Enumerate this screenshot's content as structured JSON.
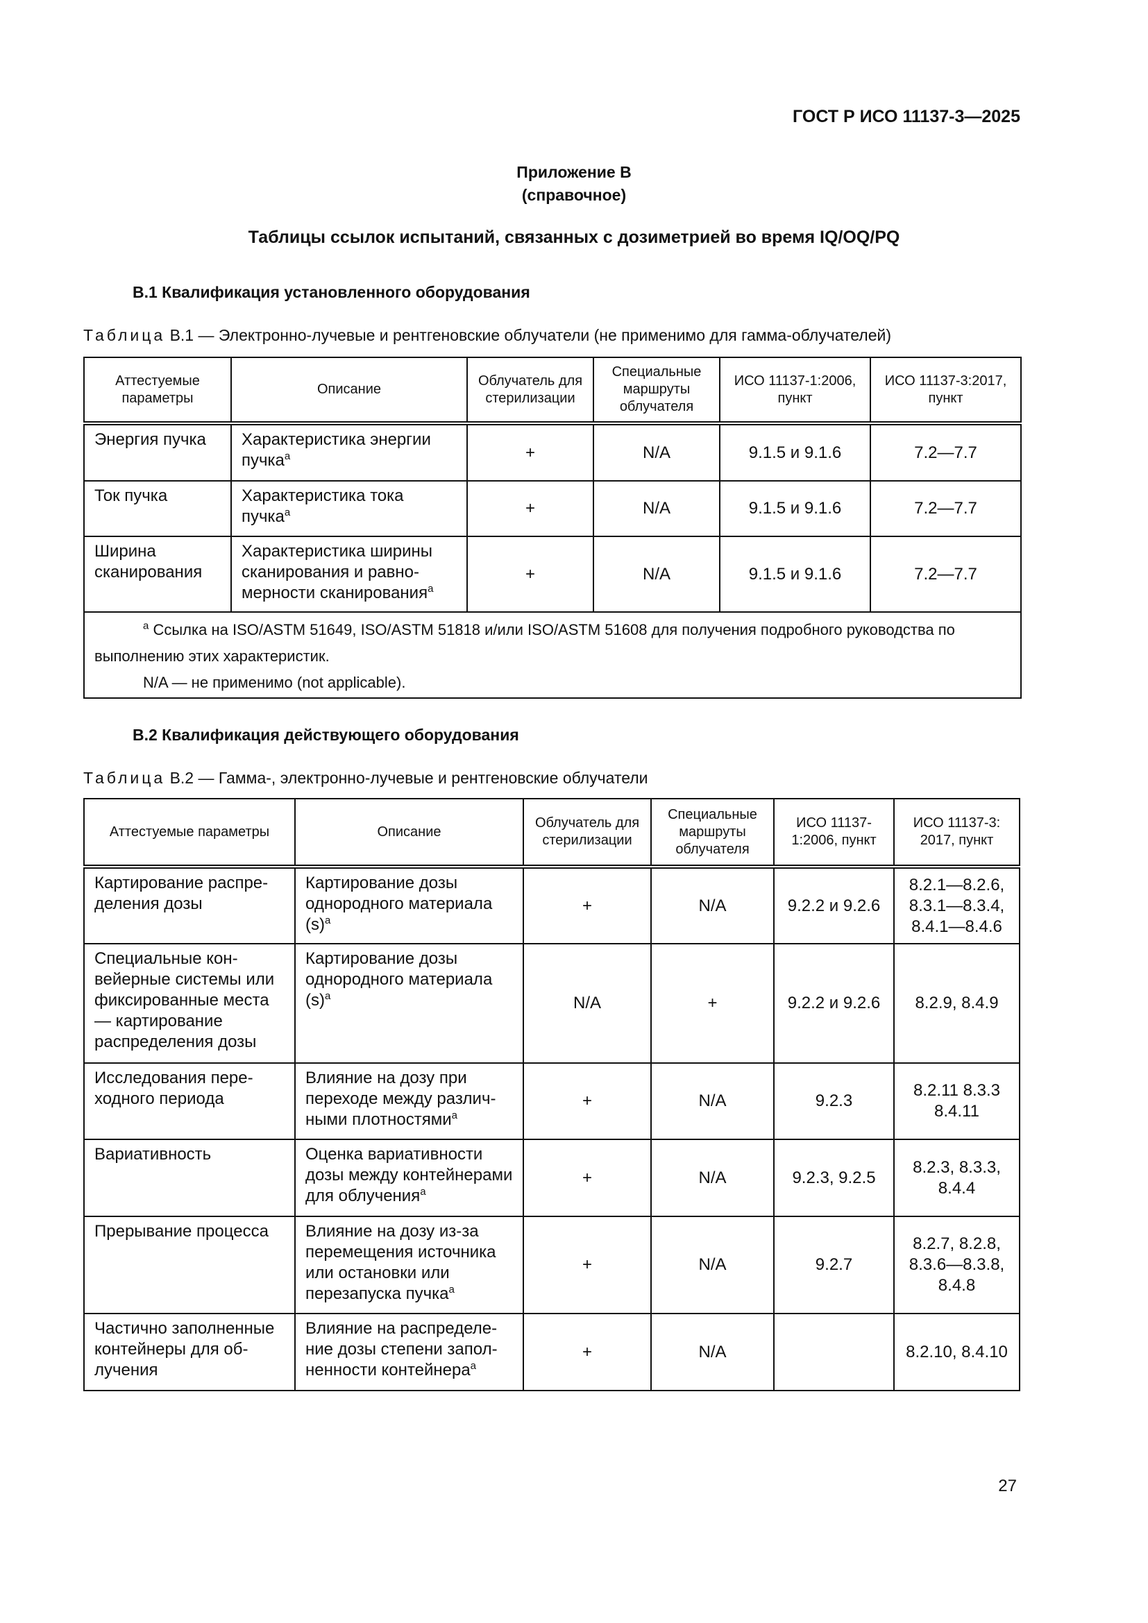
{
  "header": {
    "doc_code": "ГОСТ Р ИСО 11137-3—2025"
  },
  "annex": {
    "title": "Приложение В",
    "subtitle": "(справочное)",
    "heading": "Таблицы ссылок испытаний, связанных с дозиметрией во время IQ/OQ/PQ"
  },
  "section1": {
    "heading": "В.1 Квалификация установленного оборудования",
    "caption_prefix": "Таблица",
    "caption_rest": " В.1 — Электронно-лучевые и рентгеновские облучатели (не применимо для гамма-облучателей)",
    "columns": [
      "Аттестуемые параметры",
      "Описание",
      "Облучатель для стерилизации",
      "Специальные маршруты облучателя",
      "ИСО 11137-1:2006, пункт",
      "ИСО 11137-3:2017, пункт"
    ],
    "rows": [
      [
        "Энергия пучка",
        "Характеристика энергии пучка",
        "+",
        "N/A",
        "9.1.5 и 9.1.6",
        "7.2—7.7"
      ],
      [
        "Ток пучка",
        "Характеристика тока пучка",
        "+",
        "N/A",
        "9.1.5 и 9.1.6",
        "7.2—7.7"
      ],
      [
        "Ширина сканирования",
        "Характеристика ширины сканирования и равно­мерности сканирования",
        "+",
        "N/A",
        "9.1.5 и 9.1.6",
        "7.2—7.7"
      ]
    ],
    "footnote_mark": "a",
    "footnote": "Ссылка на ISO/ASTM 51649, ISO/ASTM 51818 и/или ISO/ASTM 51608 для получения подробного руковод­ства по выполнению этих характеристик.",
    "na_note": "N/A — не применимо (not applicable)."
  },
  "section2": {
    "heading": "В.2 Квалификация действующего оборудования",
    "caption_prefix": "Таблица",
    "caption_rest": " В.2 — Гамма-, электронно-лучевые и рентгеновские облучатели",
    "columns": [
      "Аттестуемые параметры",
      "Описание",
      "Облучатель для стерилизации",
      "Специальные маршруты облучателя",
      "ИСО 11137-1:2006, пункт",
      "ИСО 11137-3: 2017, пункт"
    ],
    "rows": [
      [
        "Картирование распре­деления дозы",
        "Картирование дозы однородного материала (s)",
        "+",
        "N/A",
        "9.2.2 и 9.2.6",
        "8.2.1—8.2.6, 8.3.1—8.3.4, 8.4.1—8.4.6"
      ],
      [
        "Специальные кон­вейерные системы или фиксированные места — картирование распределения дозы",
        "Картирование дозы однородного материала (s)",
        "N/A",
        "+",
        "9.2.2 и 9.2.6",
        "8.2.9, 8.4.9"
      ],
      [
        "Исследования пере­ходного периода",
        "Влияние на дозу при переходе между различ­ными плотностями",
        "+",
        "N/A",
        "9.2.3",
        "8.2.11 8.3.3 8.4.11"
      ],
      [
        "Вариативность",
        "Оценка вариативности дозы между контейнера­ми для облучения",
        "+",
        "N/A",
        "9.2.3, 9.2.5",
        "8.2.3, 8.3.3, 8.4.4"
      ],
      [
        "Прерывание процесса",
        "Влияние на дозу из-за перемещения источника или остановки или переза­пуска пучка",
        "+",
        "N/A",
        "9.2.7",
        "8.2.7, 8.2.8, 8.3.6—8.3.8, 8.4.8"
      ],
      [
        "Частично заполненные контейнеры для об­лучения",
        "Влияние на распределе­ние дозы степени запол­ненности контейнера",
        "+",
        "N/A",
        "",
        "8.2.10, 8.4.10"
      ]
    ]
  },
  "page_number": "27"
}
